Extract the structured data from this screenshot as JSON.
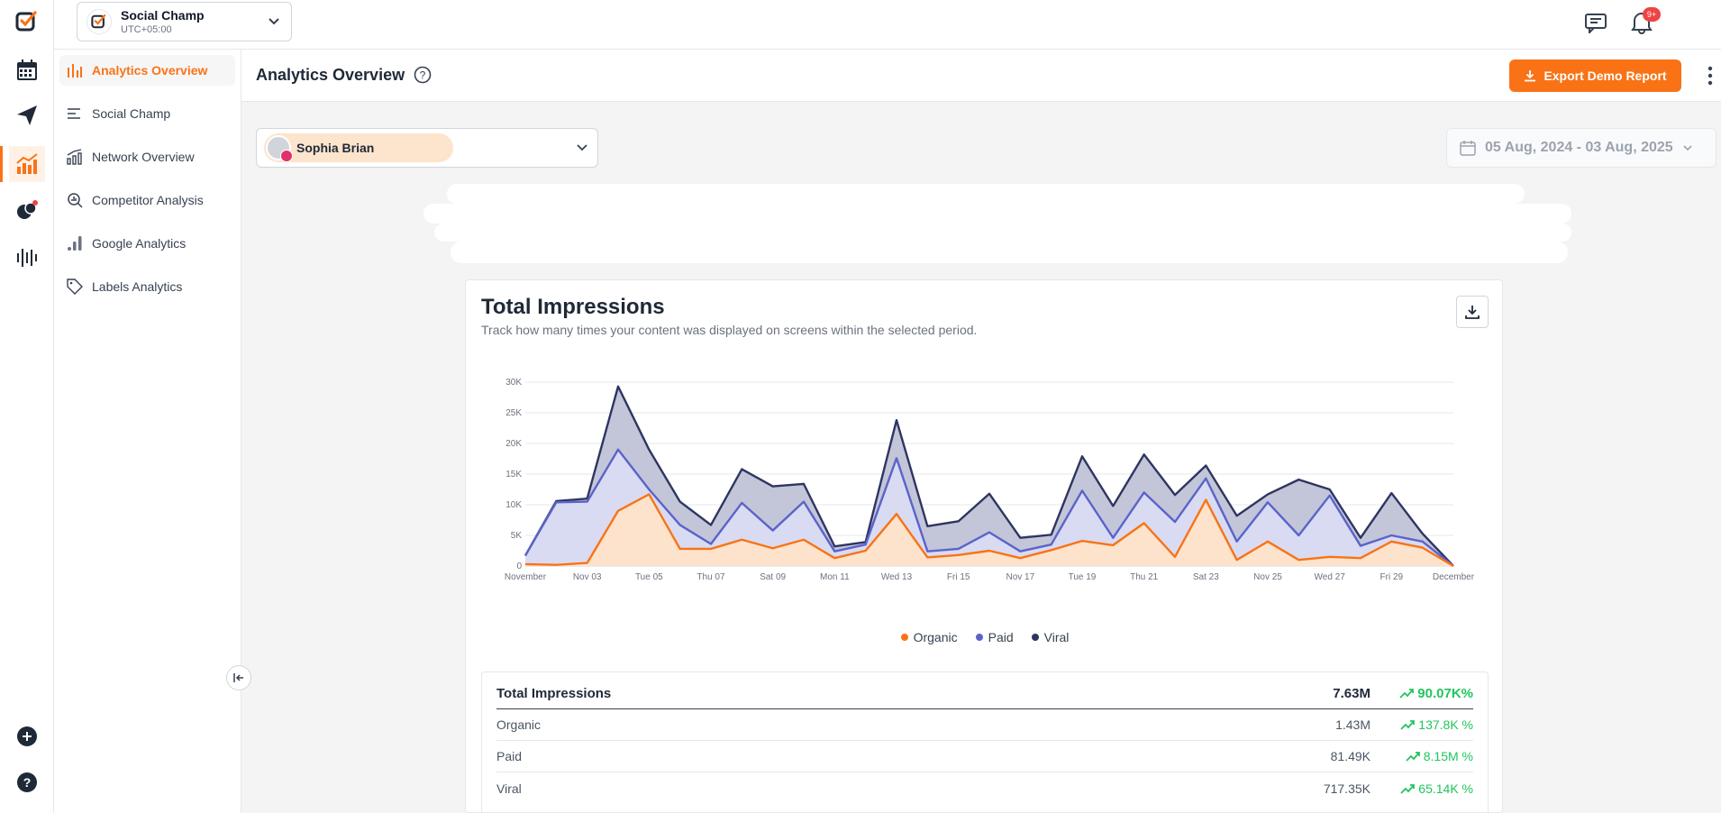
{
  "workspace": {
    "name": "Social Champ",
    "timezone": "UTC+05:00"
  },
  "notifications": {
    "badge": "9+"
  },
  "sidebar": {
    "items": [
      {
        "label": "Analytics Overview",
        "icon": "bar-chart-icon",
        "active": true
      },
      {
        "label": "Social Champ",
        "icon": "lines-icon"
      },
      {
        "label": "Network Overview",
        "icon": "network-chart-icon"
      },
      {
        "label": "Competitor Analysis",
        "icon": "magnifier-chart-icon"
      },
      {
        "label": "Google Analytics",
        "icon": "google-analytics-icon"
      },
      {
        "label": "Labels Analytics",
        "icon": "tag-icon"
      }
    ]
  },
  "page": {
    "title": "Analytics Overview",
    "export_label": "Export Demo Report"
  },
  "filters": {
    "profile": "Sophia Brian",
    "date_range": "05 Aug, 2024 - 03 Aug, 2025"
  },
  "card": {
    "title": "Total Impressions",
    "subtitle": "Track how many times your content was displayed on screens within the selected period."
  },
  "colors": {
    "accent": "#f97316",
    "organic": "#f97316",
    "paid": "#5b63c9",
    "viral": "#2e3561",
    "positive": "#22c55e"
  },
  "chart_data": {
    "type": "area",
    "stacked": true,
    "x_tick_labels": [
      "November",
      "Nov 03",
      "Tue 05",
      "Thu 07",
      "Sat 09",
      "Mon 11",
      "Wed 13",
      "Fri 15",
      "Nov 17",
      "Tue 19",
      "Thu 21",
      "Sat 23",
      "Nov 25",
      "Wed 27",
      "Fri 29",
      "December"
    ],
    "y_tick_labels": [
      "0",
      "5K",
      "10K",
      "15K",
      "20K",
      "25K",
      "30K"
    ],
    "ylim": [
      0,
      30000
    ],
    "points": 31,
    "series": [
      {
        "name": "Organic",
        "values": [
          300,
          200,
          500,
          9000,
          11700,
          2800,
          2800,
          4300,
          2900,
          4300,
          1300,
          2500,
          8500,
          1400,
          1800,
          2500,
          1300,
          2600,
          4100,
          3400,
          7000,
          1500,
          10800,
          1000,
          4000,
          1000,
          1500,
          1300,
          4000,
          3000,
          0
        ]
      },
      {
        "name": "Paid",
        "values": [
          1700,
          10400,
          10500,
          19000,
          12500,
          6700,
          3600,
          10300,
          5800,
          10500,
          2400,
          3500,
          17600,
          2400,
          2800,
          5500,
          2400,
          3500,
          12300,
          4600,
          12000,
          7200,
          14300,
          4000,
          10400,
          5000,
          11500,
          3300,
          5000,
          4000,
          0
        ]
      },
      {
        "name": "Viral",
        "values": [
          1700,
          10600,
          11000,
          29300,
          19000,
          10500,
          6700,
          15800,
          13000,
          13400,
          3200,
          3900,
          23800,
          6500,
          7300,
          11800,
          4600,
          5100,
          17900,
          9800,
          18200,
          11600,
          16400,
          8200,
          11700,
          14100,
          12500,
          4600,
          11900,
          5300,
          0
        ]
      }
    ]
  },
  "stats": {
    "header": {
      "label": "Total Impressions",
      "value": "7.63M",
      "change": "90.07K%"
    },
    "rows": [
      {
        "label": "Organic",
        "value": "1.43M",
        "change": "137.8K %"
      },
      {
        "label": "Paid",
        "value": "81.49K",
        "change": "8.15M %"
      },
      {
        "label": "Viral",
        "value": "717.35K",
        "change": "65.14K %"
      }
    ]
  }
}
